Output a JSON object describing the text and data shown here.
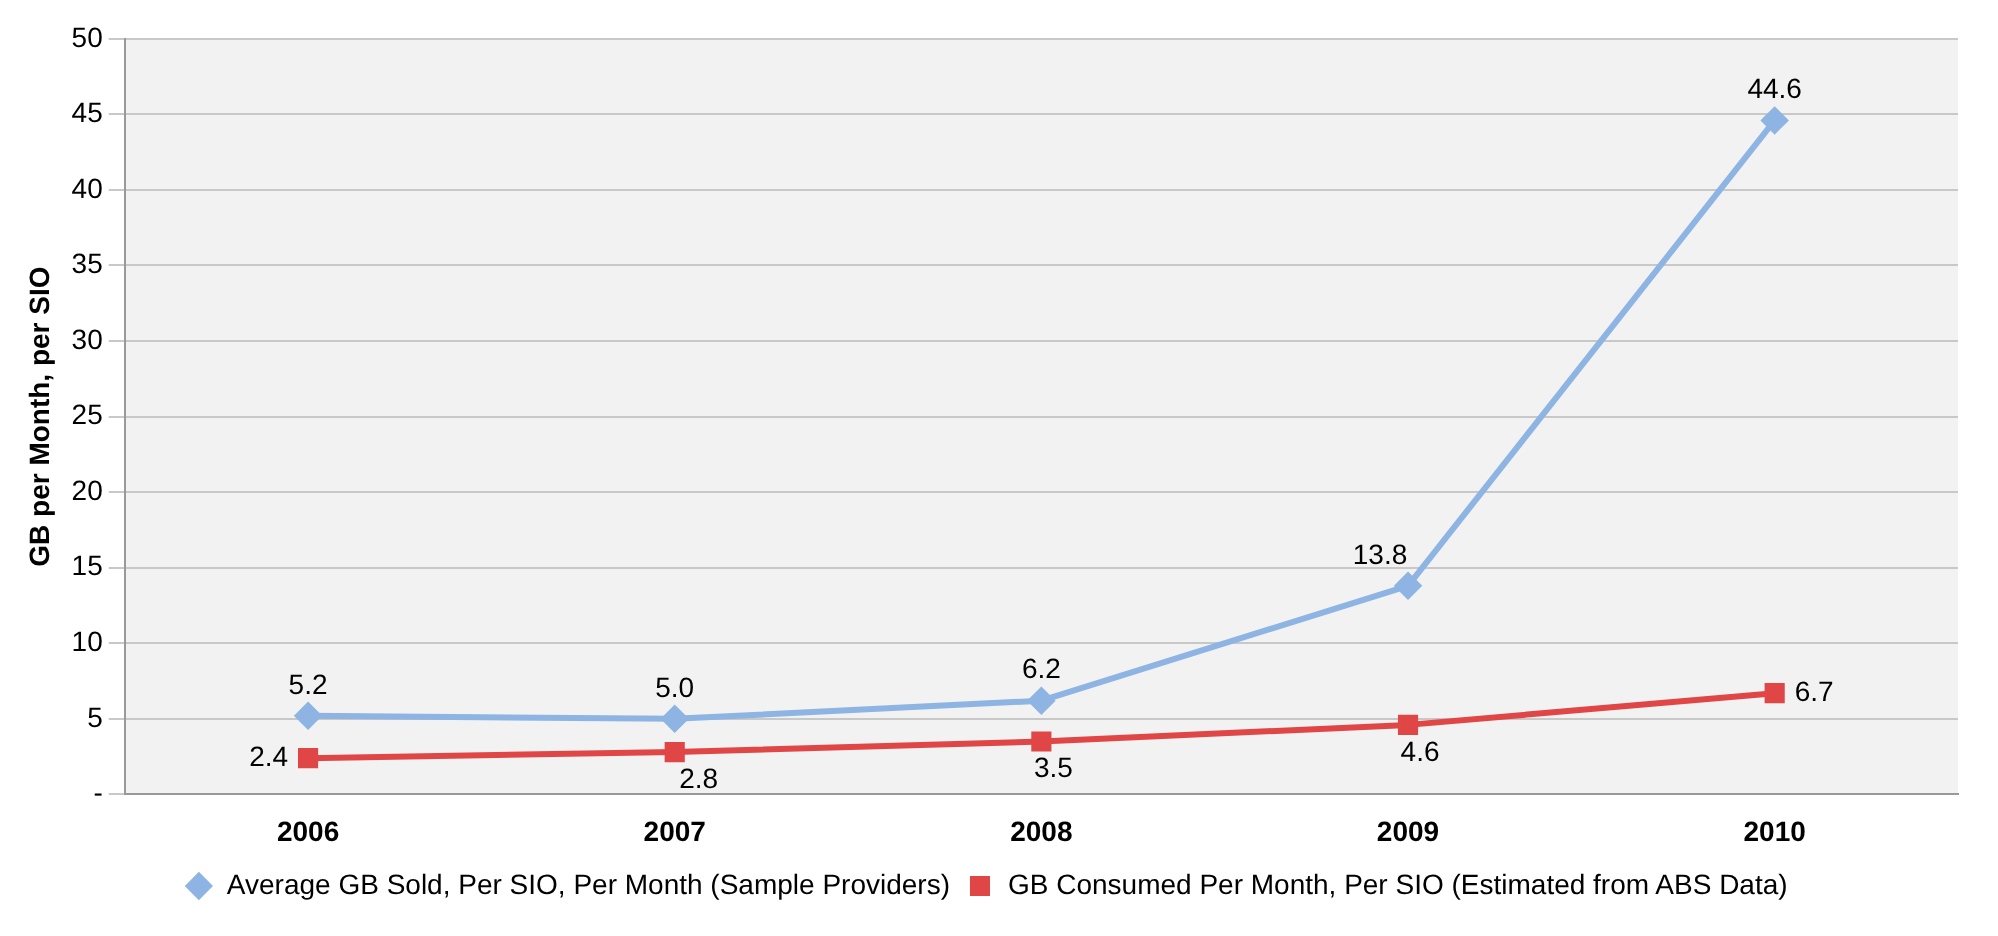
{
  "chart_data": {
    "type": "line",
    "ylabel": "GB per Month, per SIO",
    "categories": [
      "2006",
      "2007",
      "2008",
      "2009",
      "2010"
    ],
    "series": [
      {
        "name": "Average GB Sold, Per SIO, Per Month (Sample Providers)",
        "color": "#8db4e2",
        "marker": "diamond",
        "values": [
          5.2,
          5.0,
          6.2,
          13.8,
          44.6
        ],
        "value_labels": [
          "5.2",
          "5.0",
          "6.2",
          "13.8",
          "44.6"
        ]
      },
      {
        "name": "GB Consumed Per Month, Per SIO (Estimated from ABS Data)",
        "color": "#e04646",
        "marker": "square",
        "values": [
          2.4,
          2.8,
          3.5,
          4.6,
          6.7
        ],
        "value_labels": [
          "2.4",
          "2.8",
          "3.5",
          "4.6",
          "6.7"
        ]
      }
    ],
    "ylim": [
      0,
      50
    ],
    "yticks": [
      {
        "value": 0,
        "label": "-"
      },
      5,
      10,
      15,
      20,
      25,
      30,
      35,
      40,
      45,
      50
    ],
    "grid": "y",
    "legend": "bottom"
  }
}
